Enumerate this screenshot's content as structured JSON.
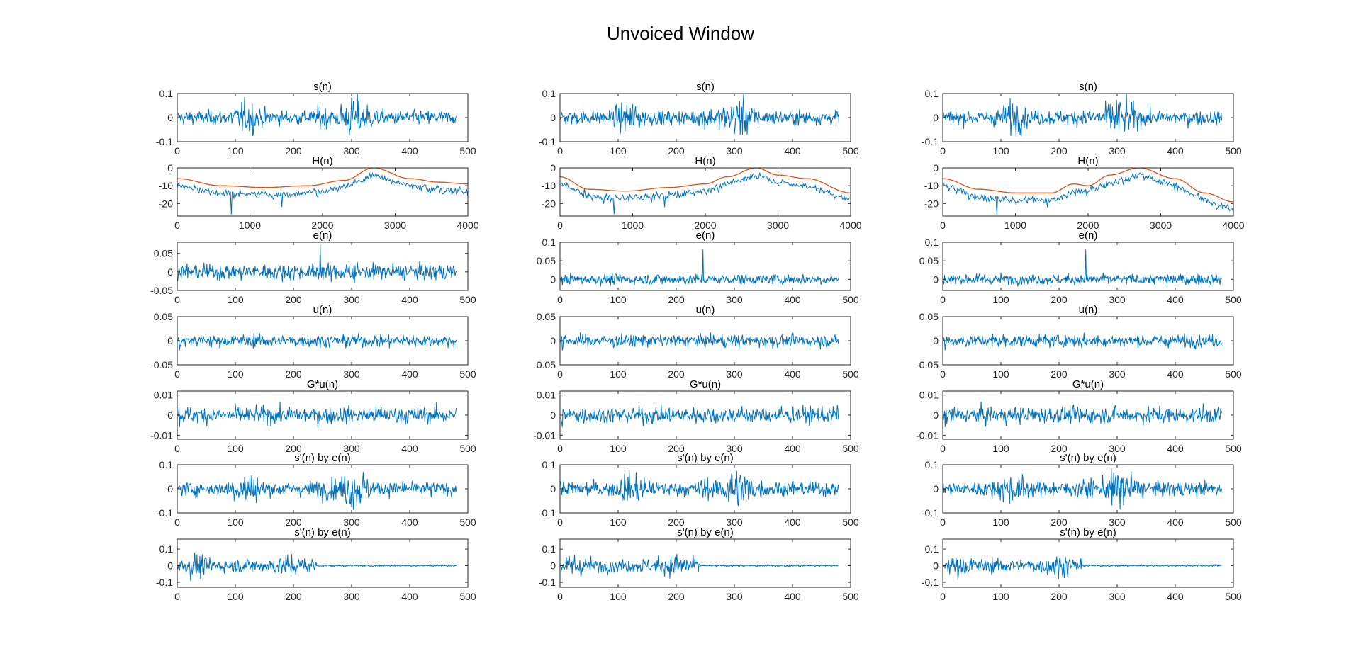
{
  "figure": {
    "title": "Unvoiced Window",
    "colors": {
      "signal": "#0072BD",
      "envelope": "#D95319",
      "axes": "#262626"
    }
  },
  "chart_data": {
    "type": "line",
    "rows": [
      {
        "title": "s(n)",
        "xlim": [
          0,
          500
        ],
        "xticks": [
          0,
          100,
          200,
          300,
          400,
          500
        ],
        "ylim": [
          -0.1,
          0.1
        ],
        "yticks": [
          -0.1,
          0,
          0.1
        ],
        "yticklabels": [
          "-0.1",
          "0",
          "0.1"
        ],
        "n_samples": 480,
        "signal": "unvoiced speech frame, bursts near n=120 and n=300, peak ±0.1"
      },
      {
        "title": "H(n)",
        "xlim": [
          0,
          4000
        ],
        "xticks": [
          0,
          1000,
          2000,
          3000,
          4000
        ],
        "ylim": [
          -27,
          0
        ],
        "yticks": [
          -20,
          -10,
          0
        ],
        "yticklabels": [
          "-20",
          "-10",
          "0"
        ],
        "signal": "magnitude spectrum (dB) with LPC envelope, peak near 2700 Hz",
        "envelopes": [
          {
            "x": [
              0,
              600,
              1200,
              1800,
              2300,
              2700,
              3200,
              3600,
              4000
            ],
            "y": [
              -6,
              -10,
              -11,
              -10,
              -7,
              0,
              -6,
              -8,
              -9
            ]
          },
          {
            "x": [
              0,
              400,
              900,
              1500,
              2000,
              2300,
              2700,
              3000,
              3400,
              4000
            ],
            "y": [
              -5,
              -12,
              -13,
              -11,
              -9,
              -5,
              0,
              -4,
              -6,
              -14
            ]
          },
          {
            "x": [
              0,
              500,
              1000,
              1500,
              1800,
              2000,
              2300,
              2700,
              3200,
              3600,
              4000
            ],
            "y": [
              -6,
              -12,
              -14,
              -14,
              -9,
              -10,
              -4,
              0,
              -6,
              -14,
              -19
            ]
          }
        ]
      },
      {
        "title": "e(n)",
        "xlim": [
          0,
          500
        ],
        "xticks": [
          0,
          100,
          200,
          300,
          400,
          500
        ],
        "ylim": [
          -0.05,
          0.08
        ],
        "ylims_per_column": [
          [
            -0.05,
            0.08
          ],
          [
            -0.03,
            0.1
          ],
          [
            -0.03,
            0.1
          ]
        ],
        "yticks_per_column": [
          [
            -0.05,
            0,
            0.05
          ],
          [
            0,
            0.05,
            0.1
          ],
          [
            0,
            0.05,
            0.1
          ]
        ],
        "yticklabels_per_column": [
          [
            "-0.05",
            "0",
            "0.05"
          ],
          [
            "0",
            "0.05",
            "0.1"
          ],
          [
            "0",
            "0.05",
            "0.1"
          ]
        ],
        "n_samples": 480,
        "signal": "prediction error / residual, spike near n=245"
      },
      {
        "title": "u(n)",
        "xlim": [
          0,
          500
        ],
        "xticks": [
          0,
          100,
          200,
          300,
          400,
          500
        ],
        "ylim": [
          -0.05,
          0.05
        ],
        "yticks": [
          -0.05,
          0,
          0.05
        ],
        "yticklabels": [
          "-0.05",
          "0",
          "0.05"
        ],
        "n_samples": 480,
        "signal": "white noise excitation ±0.02"
      },
      {
        "title": "G*u(n)",
        "xlim": [
          0,
          500
        ],
        "xticks": [
          0,
          100,
          200,
          300,
          400,
          500
        ],
        "ylim": [
          -0.012,
          0.012
        ],
        "yticks": [
          -0.01,
          0,
          0.01
        ],
        "yticklabels": [
          "-0.01",
          "0",
          "0.01"
        ],
        "n_samples": 480,
        "signal": "scaled noise excitation ±0.008"
      },
      {
        "title": "s'(n) by e(n)",
        "xlim": [
          0,
          500
        ],
        "xticks": [
          0,
          100,
          200,
          300,
          400,
          500
        ],
        "ylim": [
          -0.1,
          0.1
        ],
        "yticks": [
          -0.1,
          0,
          0.1
        ],
        "yticklabels": [
          "-0.1",
          "0",
          "0.1"
        ],
        "n_samples": 480,
        "signal": "reconstruction from residual, bursts near n=120 and n=300"
      },
      {
        "title": "s'(n) by e(n)",
        "xlim": [
          0,
          500
        ],
        "xticks": [
          0,
          100,
          200,
          300,
          400,
          500
        ],
        "ylim": [
          -0.13,
          0.16
        ],
        "yticks": [
          -0.1,
          0,
          0.1
        ],
        "yticklabels": [
          "-0.1",
          "0",
          "0.1"
        ],
        "n_samples": 480,
        "signal": "large amplitude (±0.14) for n<240, small (±0.01) after"
      }
    ],
    "columns": 3
  }
}
